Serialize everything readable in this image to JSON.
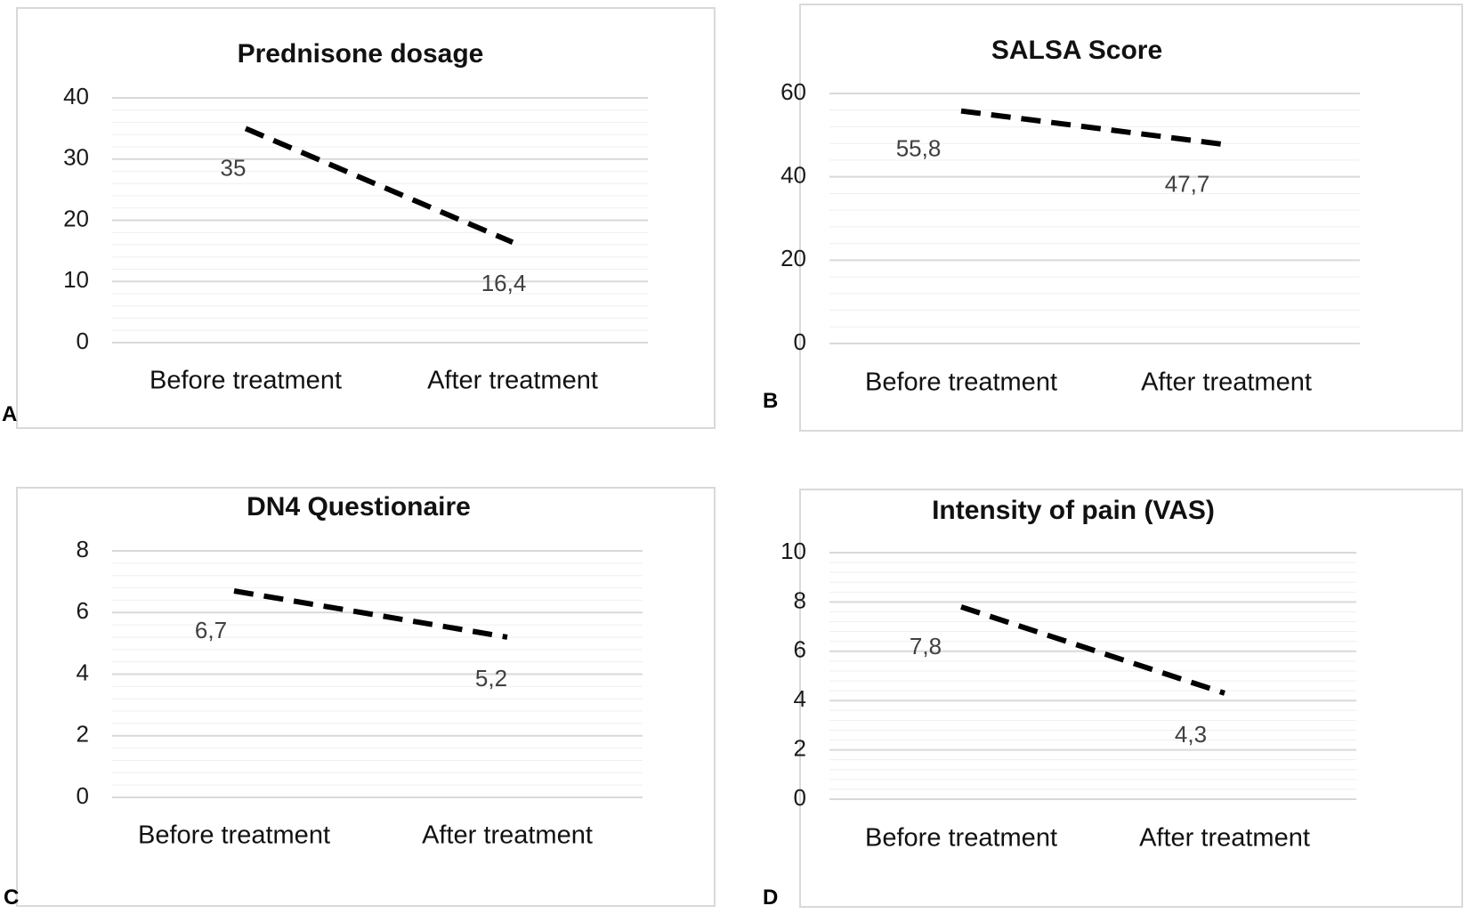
{
  "chart_data": [
    {
      "type": "line",
      "panel": "A",
      "title": "Prednisone dosage",
      "categories": [
        "Before treatment",
        "After treatment"
      ],
      "series": [
        {
          "name": "Prednisone dosage",
          "values": [
            35,
            16.4
          ],
          "labels": [
            "35",
            "16,4"
          ]
        }
      ],
      "ylim": [
        0,
        40
      ],
      "yticks": [
        0,
        10,
        20,
        30,
        40
      ],
      "minor_per_major": 5,
      "xlabel": "",
      "ylabel": ""
    },
    {
      "type": "line",
      "panel": "B",
      "title": "SALSA Score",
      "categories": [
        "Before treatment",
        "After treatment"
      ],
      "series": [
        {
          "name": "SALSA Score",
          "values": [
            55.8,
            47.7
          ],
          "labels": [
            "55,8",
            "47,7"
          ]
        }
      ],
      "ylim": [
        0,
        60
      ],
      "yticks": [
        0,
        20,
        40,
        60
      ],
      "minor_per_major": 5,
      "xlabel": "",
      "ylabel": ""
    },
    {
      "type": "line",
      "panel": "C",
      "title": "DN4 Questionaire",
      "categories": [
        "Before treatment",
        "After treatment"
      ],
      "series": [
        {
          "name": "DN4 Questionaire",
          "values": [
            6.7,
            5.2
          ],
          "labels": [
            "6,7",
            "5,2"
          ]
        }
      ],
      "ylim": [
        0,
        8
      ],
      "yticks": [
        0,
        2,
        4,
        6,
        8
      ],
      "minor_per_major": 5,
      "xlabel": "",
      "ylabel": ""
    },
    {
      "type": "line",
      "panel": "D",
      "title": "Intensity of pain (VAS)",
      "categories": [
        "Before treatment",
        "After treatment"
      ],
      "series": [
        {
          "name": "Intensity of pain (VAS)",
          "values": [
            7.8,
            4.3
          ],
          "labels": [
            "7,8",
            "4,3"
          ]
        }
      ],
      "ylim": [
        0,
        10
      ],
      "yticks": [
        0,
        2,
        4,
        6,
        8,
        10
      ],
      "minor_per_major": 5,
      "xlabel": "",
      "ylabel": ""
    }
  ]
}
